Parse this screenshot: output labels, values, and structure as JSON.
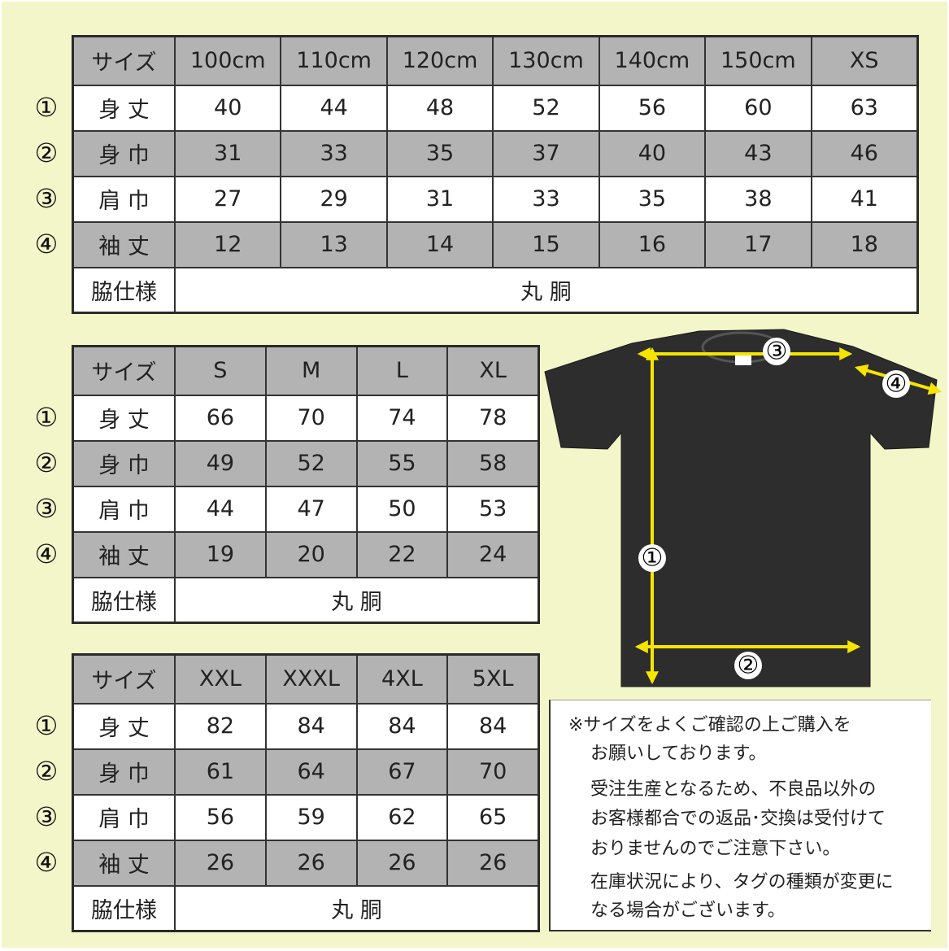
{
  "tables": [
    {
      "header": [
        "サイズ",
        "100cm",
        "110cm",
        "120cm",
        "130cm",
        "140cm",
        "150cm",
        "XS"
      ],
      "rows": [
        {
          "marker": "①",
          "label": "身 丈",
          "values": [
            40,
            44,
            48,
            52,
            56,
            60,
            63
          ]
        },
        {
          "marker": "②",
          "label": "身 巾",
          "values": [
            31,
            33,
            35,
            37,
            40,
            43,
            46
          ]
        },
        {
          "marker": "③",
          "label": "肩 巾",
          "values": [
            27,
            29,
            31,
            33,
            35,
            38,
            41
          ]
        },
        {
          "marker": "④",
          "label": "袖 丈",
          "values": [
            12,
            13,
            14,
            15,
            16,
            17,
            18
          ]
        }
      ],
      "footer": {
        "label": "脇仕様",
        "value": "丸 胴"
      }
    },
    {
      "header": [
        "サイズ",
        "S",
        "M",
        "L",
        "XL"
      ],
      "rows": [
        {
          "marker": "①",
          "label": "身 丈",
          "values": [
            66,
            70,
            74,
            78
          ]
        },
        {
          "marker": "②",
          "label": "身 巾",
          "values": [
            49,
            52,
            55,
            58
          ]
        },
        {
          "marker": "③",
          "label": "肩 巾",
          "values": [
            44,
            47,
            50,
            53
          ]
        },
        {
          "marker": "④",
          "label": "袖 丈",
          "values": [
            19,
            20,
            22,
            24
          ]
        }
      ],
      "footer": {
        "label": "脇仕様",
        "value": "丸 胴"
      }
    },
    {
      "header": [
        "サイズ",
        "XXL",
        "XXXL",
        "4XL",
        "5XL"
      ],
      "rows": [
        {
          "marker": "①",
          "label": "身 丈",
          "values": [
            82,
            84,
            84,
            84
          ]
        },
        {
          "marker": "②",
          "label": "身 巾",
          "values": [
            61,
            64,
            67,
            70
          ]
        },
        {
          "marker": "③",
          "label": "肩 巾",
          "values": [
            56,
            59,
            62,
            65
          ]
        },
        {
          "marker": "④",
          "label": "袖 丈",
          "values": [
            26,
            26,
            26,
            26
          ]
        }
      ],
      "footer": {
        "label": "脇仕様",
        "value": "丸 胴"
      }
    }
  ],
  "diagram": {
    "labels": [
      "①",
      "②",
      "③",
      "④"
    ]
  },
  "note": {
    "lines": [
      "※サイズをよくご確認の上ご購入を",
      "お願いしております。",
      "受注生産となるため、不良品以外の",
      "お客様都合での返品･交換は受付けて",
      "おりませんのでご注意下さい。",
      "在庫状況により、タグの種類が変更に",
      "なる場合がございます。"
    ]
  }
}
